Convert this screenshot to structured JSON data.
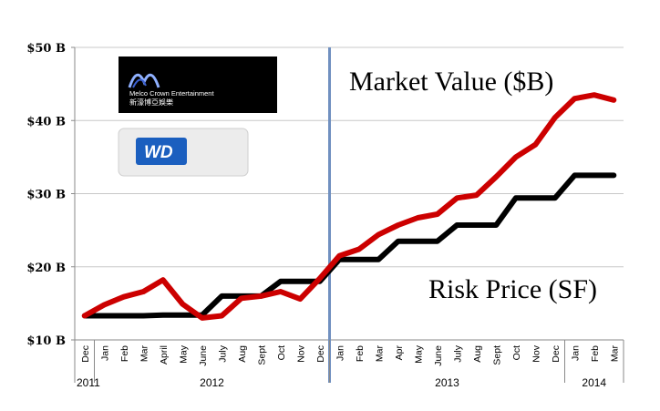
{
  "chart_data": {
    "type": "line",
    "title": "",
    "xlabel": "",
    "ylabel": "",
    "ylim": [
      10,
      50
    ],
    "yticks": [
      {
        "value": 10,
        "label": "$10 B"
      },
      {
        "value": 20,
        "label": "$20 B"
      },
      {
        "value": 30,
        "label": "$30 B"
      },
      {
        "value": 40,
        "label": "$40 B"
      },
      {
        "value": 50,
        "label": "$50 B"
      }
    ],
    "categories": [
      "Dec",
      "Jan",
      "Feb",
      "Mar",
      "April",
      "May",
      "June",
      "July",
      "Aug",
      "Sept",
      "Oct",
      "Nov",
      "Dec",
      "Jan",
      "Feb",
      "Mar",
      "Apr",
      "May",
      "June",
      "July",
      "Aug",
      "Sept",
      "Oct",
      "Nov",
      "Dec",
      "Jan",
      "Feb",
      "Mar"
    ],
    "years": [
      {
        "label": "2011",
        "start": 0,
        "end": 0
      },
      {
        "label": "2012",
        "start": 1,
        "end": 12
      },
      {
        "label": "2013",
        "start": 13,
        "end": 24
      },
      {
        "label": "2014",
        "start": 25,
        "end": 27
      }
    ],
    "divider_after_index": 12,
    "series": [
      {
        "name": "Market Value ($B)",
        "color": "#cc0000",
        "values": [
          13.3,
          14.8,
          15.9,
          16.6,
          18.2,
          14.9,
          13.0,
          13.3,
          15.7,
          16.0,
          16.6,
          15.6,
          18.4,
          21.5,
          22.4,
          24.4,
          25.7,
          26.7,
          27.2,
          29.4,
          29.8,
          32.3,
          35.0,
          36.7,
          40.4,
          43.0,
          43.5,
          42.8
        ]
      },
      {
        "name": "Risk Price (SF)",
        "color": "#000000",
        "values": [
          13.3,
          13.3,
          13.3,
          13.3,
          13.4,
          13.4,
          13.4,
          16.0,
          16.0,
          16.0,
          18.0,
          18.0,
          18.0,
          21.0,
          21.0,
          21.0,
          23.5,
          23.5,
          23.5,
          25.7,
          25.7,
          25.7,
          29.4,
          29.4,
          29.4,
          32.5,
          32.5,
          32.5
        ]
      }
    ],
    "grid": "horizontal",
    "annotations": {
      "market_value": "Market Value ($B)",
      "risk_price": "Risk Price (SF)"
    },
    "logos": {
      "melco": {
        "en": "Melco Crown Entertainment",
        "cn": "新濠博亞娛樂"
      },
      "wd": {
        "text": "WD"
      }
    }
  }
}
